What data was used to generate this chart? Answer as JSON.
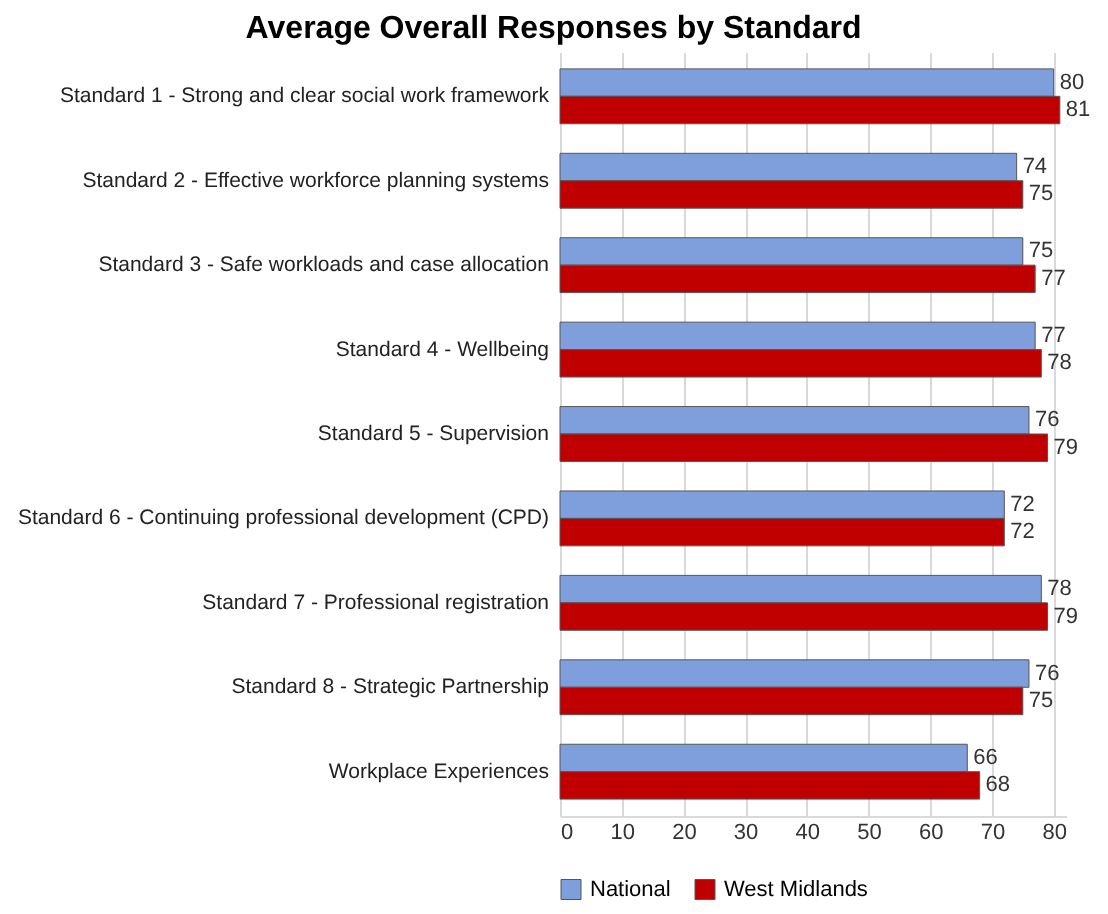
{
  "chart_data": {
    "type": "bar",
    "orientation": "horizontal",
    "title": "Average Overall Responses by Standard",
    "categories": [
      "Standard 1 - Strong and clear social work framework",
      "Standard 2 - Effective workforce planning systems",
      "Standard 3 - Safe workloads and case allocation",
      "Standard 4 - Wellbeing",
      "Standard 5 - Supervision",
      "Standard 6 - Continuing professional development (CPD)",
      "Standard 7 - Professional registration",
      "Standard 8 - Strategic Partnership",
      "Workplace Experiences"
    ],
    "series": [
      {
        "name": "National",
        "color": "#7f9fdc",
        "values": [
          80,
          74,
          75,
          77,
          76,
          72,
          78,
          76,
          66
        ]
      },
      {
        "name": "West Midlands",
        "color": "#c00000",
        "values": [
          81,
          75,
          77,
          78,
          79,
          72,
          79,
          75,
          68
        ]
      }
    ],
    "xlim": [
      0,
      82
    ],
    "xticks": [
      0,
      10,
      20,
      30,
      40,
      50,
      60,
      70,
      80
    ],
    "grid": "x",
    "legend": "bottom",
    "data_labels": true
  }
}
